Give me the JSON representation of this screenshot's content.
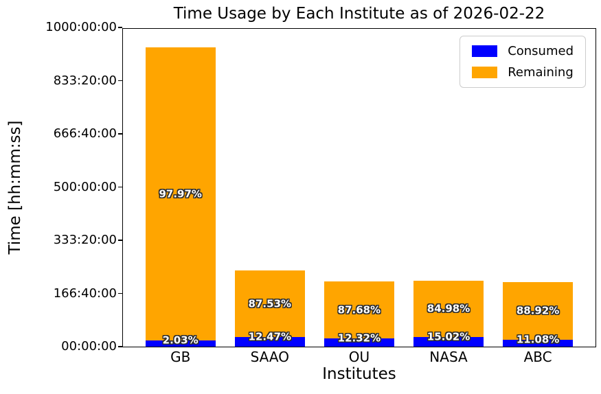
{
  "chart_data": {
    "type": "bar",
    "stacked": true,
    "title": "Time Usage by Each Institute as of 2026-02-22",
    "xlabel": "Institutes",
    "ylabel": "Time [hh:mm:ss]",
    "categories": [
      "GB",
      "SAAO",
      "OU",
      "NASA",
      "ABC"
    ],
    "series": [
      {
        "name": "Consumed",
        "color": "#0000ff",
        "pct_of_total": [
          2.03,
          12.47,
          12.32,
          15.02,
          11.08
        ],
        "bar_labels": [
          "2.03%",
          "12.47%",
          "12.32%",
          "15.02%",
          "11.08%"
        ]
      },
      {
        "name": "Remaining",
        "color": "#ffa500",
        "pct_of_total": [
          97.97,
          87.53,
          87.68,
          84.98,
          88.92
        ],
        "bar_labels": [
          "97.97%",
          "87.53%",
          "87.68%",
          "84.98%",
          "88.92%"
        ]
      }
    ],
    "total_hours_estimated": [
      937,
      239,
      204,
      206,
      203
    ],
    "ylim_hours": [
      0,
      1000
    ],
    "yticks": {
      "values_hours": [
        0,
        166.6667,
        333.3333,
        500,
        666.6667,
        833.3333,
        1000
      ],
      "labels": [
        "00:00:00",
        "166:40:00",
        "333:20:00",
        "500:00:00",
        "666:40:00",
        "833:20:00",
        "1000:00:00"
      ]
    },
    "legend": {
      "position": "upper right",
      "entries": [
        "Consumed",
        "Remaining"
      ]
    },
    "grid": false,
    "colors": {
      "consumed": "#0000ff",
      "remaining": "#ffa500",
      "bar_label_text": "#ffffff",
      "bar_label_outline": "#2e2e2e",
      "axes": "#000000",
      "legend_border": "#cccccc"
    }
  }
}
